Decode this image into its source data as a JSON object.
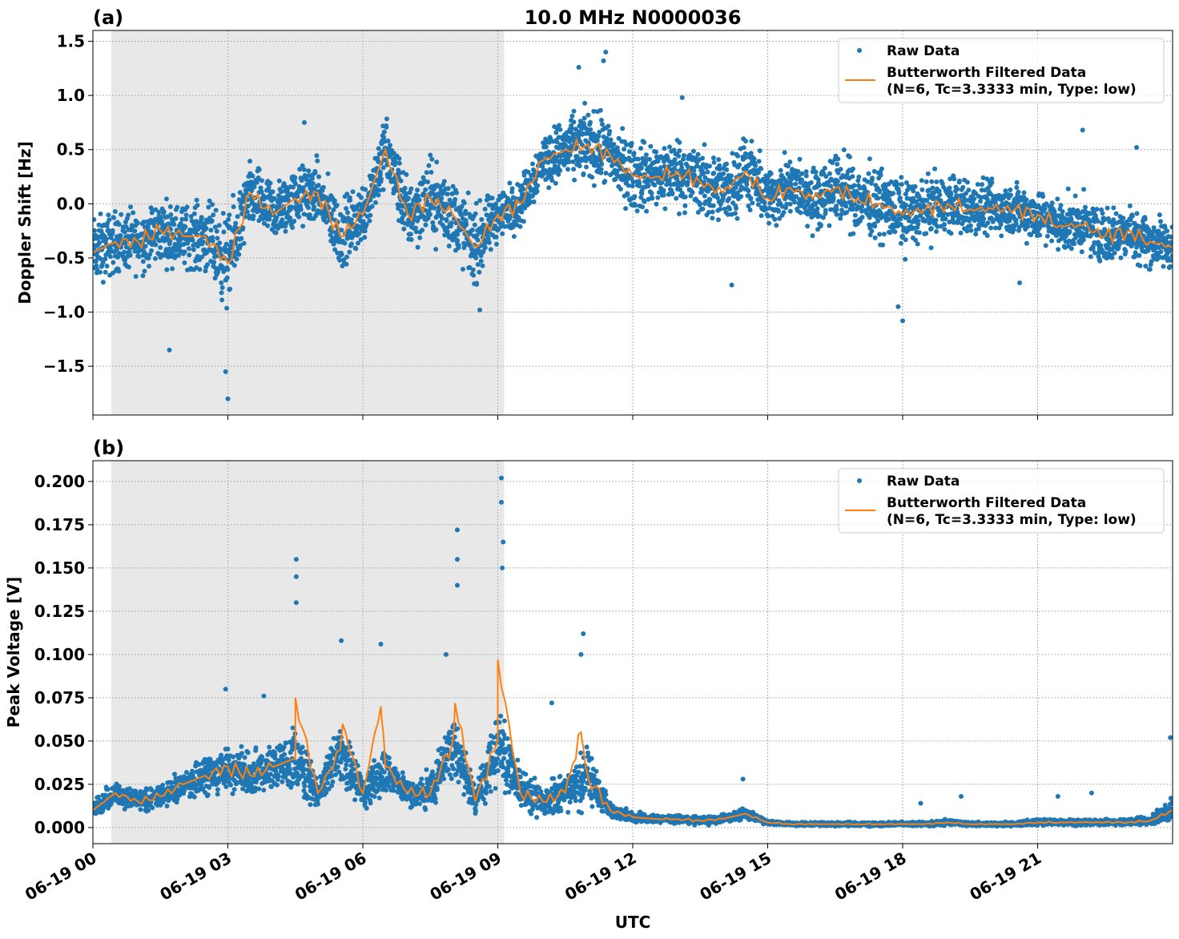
{
  "title": "10.0 MHz N0000036",
  "xlabel": "UTC",
  "colors": {
    "raw": "#1f77b4",
    "filtered": "#ff7f0e",
    "shade": "#e8e8e8",
    "grid": "#b0b0b0"
  },
  "x_tick_labels": [
    "06-19 00",
    "06-19 03",
    "06-19 06",
    "06-19 09",
    "06-19 12",
    "06-19 15",
    "06-19 18",
    "06-19 21"
  ],
  "x_ticks_hours": [
    0,
    3,
    6,
    9,
    12,
    15,
    18,
    21
  ],
  "xlim_hours": [
    0,
    24
  ],
  "shaded_interval_hours": [
    0.41,
    9.14
  ],
  "legend": {
    "raw": "Raw Data",
    "filtered_line1": "Butterworth Filtered Data",
    "filtered_line2": "(N=6, Tc=3.3333 min, Type: low)"
  },
  "chart_data": [
    {
      "type": "scatter",
      "panel_label": "(a)",
      "ylabel": "Doppler Shift [Hz]",
      "ylim": [
        -1.95,
        1.6
      ],
      "y_ticks": [
        1.5,
        1.0,
        0.5,
        0.0,
        -0.5,
        -1.0,
        -1.5
      ],
      "y_tick_labels": [
        "1.5",
        "1.0",
        "0.5",
        "0.0",
        "−0.5",
        "−1.0",
        "−1.5"
      ],
      "legend_position": "top-right",
      "step_hours": 0.5,
      "filtered": [
        -0.45,
        -0.35,
        -0.35,
        -0.25,
        -0.3,
        -0.3,
        -0.55,
        0.1,
        -0.1,
        0.05,
        0.1,
        -0.3,
        -0.1,
        0.5,
        -0.1,
        0.05,
        -0.1,
        -0.4,
        -0.1,
        0.0,
        0.4,
        0.5,
        0.55,
        0.45,
        0.25,
        0.25,
        0.3,
        0.2,
        0.1,
        0.3,
        0.05,
        0.15,
        0.05,
        0.15,
        0.05,
        0.0,
        -0.1,
        -0.05,
        0.0,
        -0.05,
        -0.05,
        -0.05,
        -0.1,
        -0.2,
        -0.2,
        -0.3,
        -0.25,
        -0.35,
        -0.4
      ],
      "raw_spread": [
        0.45,
        0.4,
        0.4,
        0.4,
        0.4,
        0.45,
        0.6,
        0.4,
        0.4,
        0.4,
        0.4,
        0.45,
        0.4,
        0.45,
        0.45,
        0.5,
        0.5,
        0.5,
        0.35,
        0.3,
        0.35,
        0.4,
        0.45,
        0.45,
        0.45,
        0.45,
        0.45,
        0.45,
        0.45,
        0.45,
        0.4,
        0.4,
        0.4,
        0.45,
        0.45,
        0.45,
        0.45,
        0.4,
        0.4,
        0.35,
        0.35,
        0.35,
        0.35,
        0.35,
        0.35,
        0.35,
        0.35,
        0.35,
        0.3
      ],
      "raw_outliers": [
        [
          3.0,
          -1.8
        ],
        [
          2.95,
          -1.55
        ],
        [
          11.4,
          1.4
        ],
        [
          11.35,
          1.32
        ],
        [
          10.8,
          1.26
        ],
        [
          18.0,
          -1.08
        ],
        [
          17.9,
          -0.95
        ],
        [
          1.7,
          -1.35
        ],
        [
          8.6,
          -0.98
        ],
        [
          4.7,
          0.75
        ],
        [
          13.1,
          0.98
        ],
        [
          14.2,
          -0.75
        ],
        [
          20.6,
          -0.73
        ],
        [
          22.0,
          0.68
        ],
        [
          23.2,
          0.52
        ]
      ]
    },
    {
      "type": "scatter",
      "panel_label": "(b)",
      "ylabel": "Peak Voltage [V]",
      "ylim": [
        -0.0093,
        0.212
      ],
      "y_ticks": [
        0.2,
        0.175,
        0.15,
        0.125,
        0.1,
        0.075,
        0.05,
        0.025,
        0.0
      ],
      "y_tick_labels": [
        "0.200",
        "0.175",
        "0.150",
        "0.125",
        "0.100",
        "0.075",
        "0.050",
        "0.025",
        "0.000"
      ],
      "legend_position": "top-right",
      "step_hours": 0.5,
      "filtered": [
        0.01,
        0.02,
        0.015,
        0.018,
        0.025,
        0.03,
        0.035,
        0.03,
        0.035,
        0.04,
        0.02,
        0.045,
        0.02,
        0.035,
        0.02,
        0.02,
        0.05,
        0.015,
        0.05,
        0.02,
        0.015,
        0.02,
        0.03,
        0.01,
        0.006,
        0.005,
        0.005,
        0.004,
        0.005,
        0.008,
        0.003,
        0.002,
        0.002,
        0.002,
        0.002,
        0.002,
        0.002,
        0.002,
        0.003,
        0.002,
        0.002,
        0.002,
        0.003,
        0.003,
        0.003,
        0.003,
        0.003,
        0.004,
        0.01
      ],
      "raw_spread": [
        0.008,
        0.012,
        0.01,
        0.012,
        0.016,
        0.02,
        0.025,
        0.02,
        0.025,
        0.03,
        0.015,
        0.03,
        0.015,
        0.025,
        0.015,
        0.018,
        0.035,
        0.012,
        0.04,
        0.018,
        0.015,
        0.02,
        0.03,
        0.008,
        0.005,
        0.004,
        0.004,
        0.004,
        0.004,
        0.006,
        0.002,
        0.002,
        0.002,
        0.002,
        0.002,
        0.002,
        0.002,
        0.002,
        0.003,
        0.002,
        0.002,
        0.002,
        0.003,
        0.003,
        0.003,
        0.003,
        0.003,
        0.004,
        0.015
      ],
      "raw_outliers": [
        [
          4.52,
          0.155
        ],
        [
          4.52,
          0.145
        ],
        [
          4.52,
          0.13
        ],
        [
          8.1,
          0.172
        ],
        [
          8.1,
          0.155
        ],
        [
          8.1,
          0.14
        ],
        [
          9.08,
          0.202
        ],
        [
          9.08,
          0.188
        ],
        [
          9.12,
          0.165
        ],
        [
          9.1,
          0.15
        ],
        [
          5.52,
          0.108
        ],
        [
          6.4,
          0.106
        ],
        [
          10.9,
          0.112
        ],
        [
          10.85,
          0.1
        ],
        [
          2.95,
          0.08
        ],
        [
          3.8,
          0.076
        ],
        [
          7.85,
          0.1
        ],
        [
          23.95,
          0.052
        ],
        [
          14.45,
          0.028
        ],
        [
          21.45,
          0.018
        ],
        [
          19.3,
          0.018
        ],
        [
          18.4,
          0.014
        ],
        [
          22.2,
          0.02
        ],
        [
          10.2,
          0.072
        ]
      ],
      "filtered_peaks": [
        [
          4.5,
          0.075
        ],
        [
          8.05,
          0.072
        ],
        [
          9.0,
          0.097
        ],
        [
          10.85,
          0.055
        ],
        [
          5.55,
          0.06
        ],
        [
          6.4,
          0.07
        ]
      ]
    }
  ]
}
